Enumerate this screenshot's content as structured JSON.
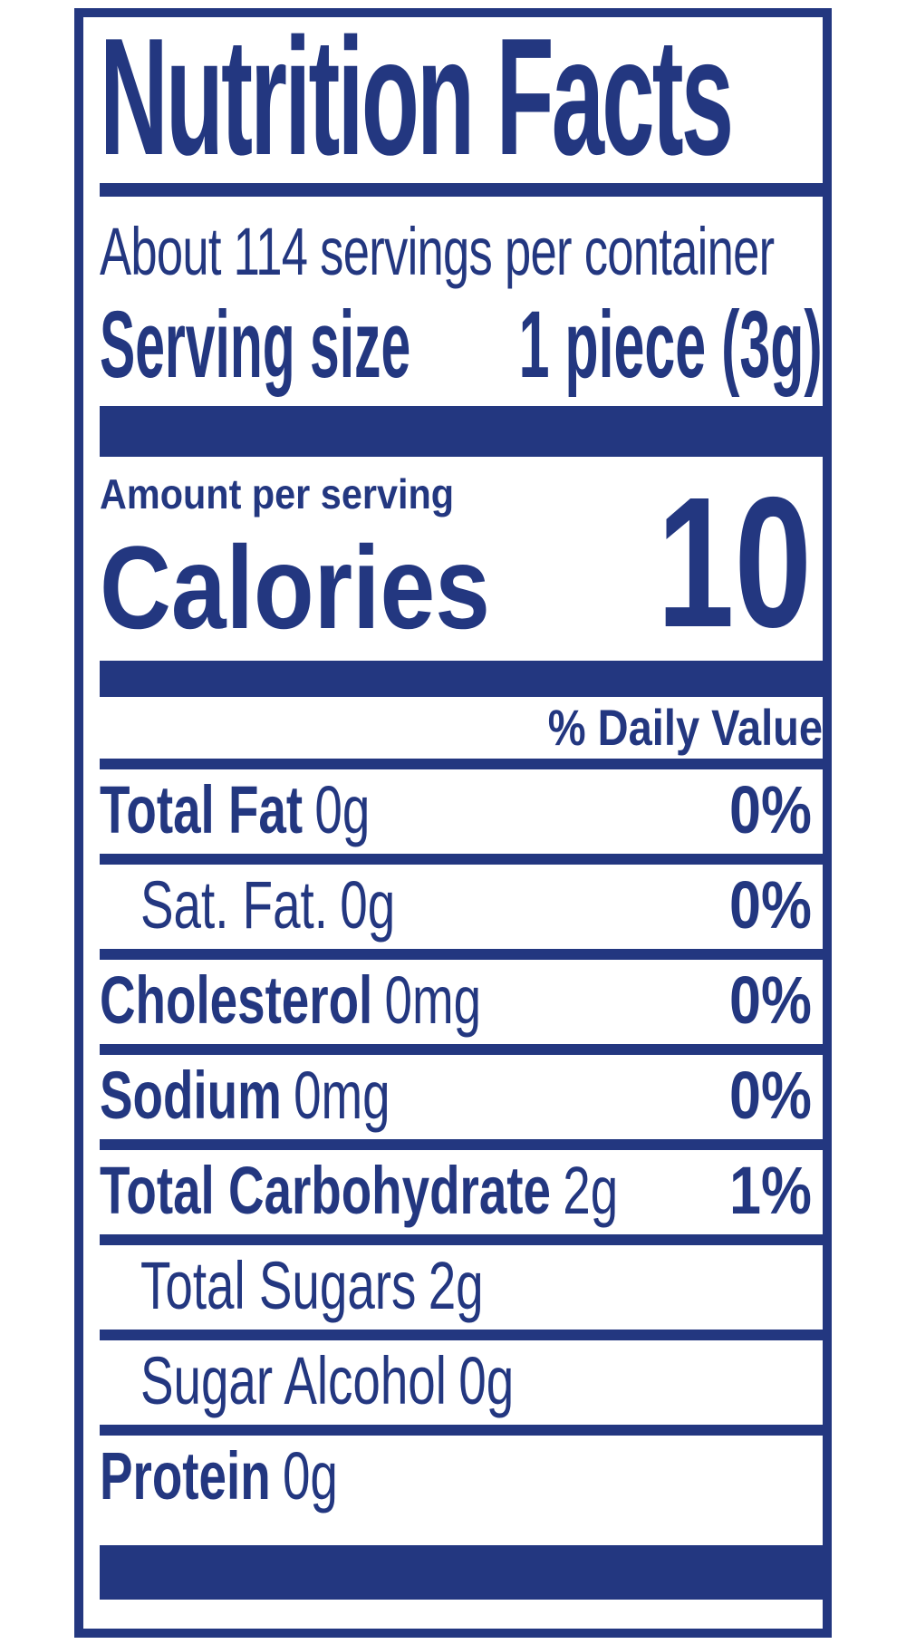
{
  "label": {
    "title": "Nutrition Facts",
    "servings_per_container": "About 114 servings per container",
    "serving_size_label": "Serving size",
    "serving_size_value": "1 piece (3g)",
    "amount_per_serving": "Amount per serving",
    "calories_label": "Calories",
    "calories_value": "10",
    "daily_value_header": "% Daily Value",
    "rows": [
      {
        "name": "Total Fat",
        "amount": "0g",
        "dv": "0%",
        "bold": true,
        "indent": false
      },
      {
        "name": "Sat. Fat.",
        "amount": "0g",
        "dv": "0%",
        "bold": false,
        "indent": true
      },
      {
        "name": "Cholesterol",
        "amount": "0mg",
        "dv": "0%",
        "bold": true,
        "indent": false
      },
      {
        "name": "Sodium",
        "amount": "0mg",
        "dv": "0%",
        "bold": true,
        "indent": false
      },
      {
        "name": "Total Carbohydrate",
        "amount": "2g",
        "dv": "1%",
        "bold": true,
        "indent": false
      },
      {
        "name": "Total Sugars",
        "amount": "2g",
        "dv": "",
        "bold": false,
        "indent": true
      },
      {
        "name": "Sugar Alcohol",
        "amount": "0g",
        "dv": "",
        "bold": false,
        "indent": true
      },
      {
        "name": "Protein",
        "amount": "0g",
        "dv": "",
        "bold": true,
        "indent": false
      }
    ],
    "colors": {
      "accent_blue": "#233780",
      "background": "#ffffff"
    }
  }
}
